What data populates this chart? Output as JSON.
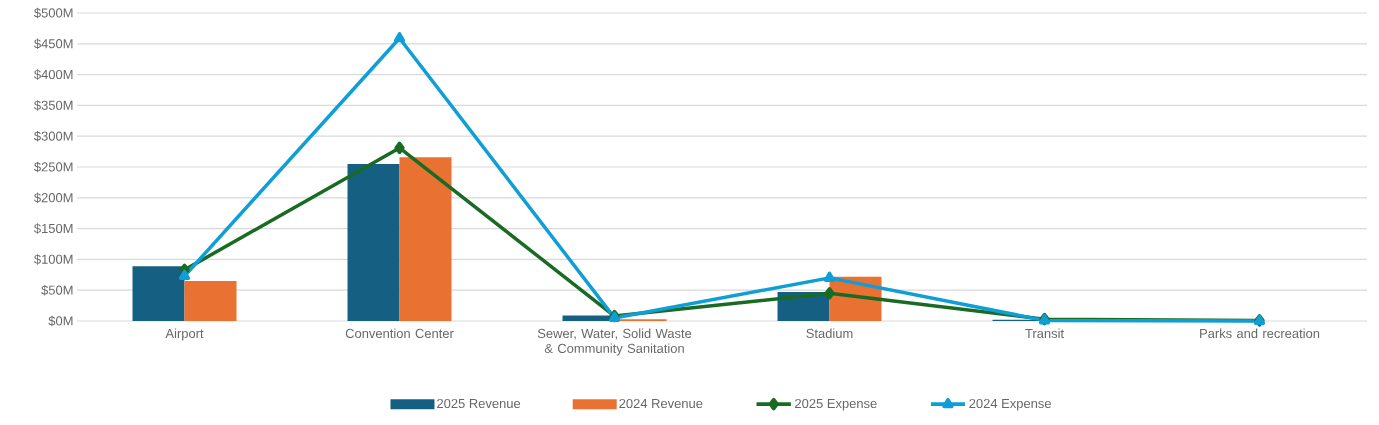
{
  "chart_data": {
    "type": "bar",
    "categories": [
      "Airport",
      "Convention Center",
      "Sewer, Water, Solid Waste & Community Sanitation",
      "Stadium",
      "Transit",
      "Parks and recreation"
    ],
    "series": [
      {
        "name": "2025 Revenue",
        "color": "#156082",
        "values": [
          89,
          255,
          9,
          47,
          2,
          0
        ]
      },
      {
        "name": "2024 Revenue",
        "color": "#e97132",
        "values": [
          65,
          266,
          3,
          72,
          0,
          0
        ]
      },
      {
        "name": "2025 Expense",
        "type": "line",
        "color": "#196b24",
        "marker": "diamond",
        "values": [
          83,
          281,
          8,
          45,
          3,
          1
        ]
      },
      {
        "name": "2024 Expense",
        "type": "line",
        "color": "#0f9ed5",
        "marker": "triangle",
        "values": [
          73,
          459,
          5,
          70,
          1,
          0
        ]
      }
    ],
    "ylim": [
      0,
      500
    ],
    "yticks": [
      {
        "value": 0,
        "label": "$0M"
      },
      {
        "value": 50,
        "label": "$50M"
      },
      {
        "value": 100,
        "label": "$100M"
      },
      {
        "value": 150,
        "label": "$150M"
      },
      {
        "value": 200,
        "label": "$200M"
      },
      {
        "value": 250,
        "label": "$250M"
      },
      {
        "value": 300,
        "label": "$300M"
      },
      {
        "value": 350,
        "label": "$350M"
      },
      {
        "value": 400,
        "label": "$400M"
      },
      {
        "value": 450,
        "label": "$450M"
      },
      {
        "value": 500,
        "label": "$500M"
      }
    ],
    "grid": "y",
    "legend": "bottom"
  }
}
